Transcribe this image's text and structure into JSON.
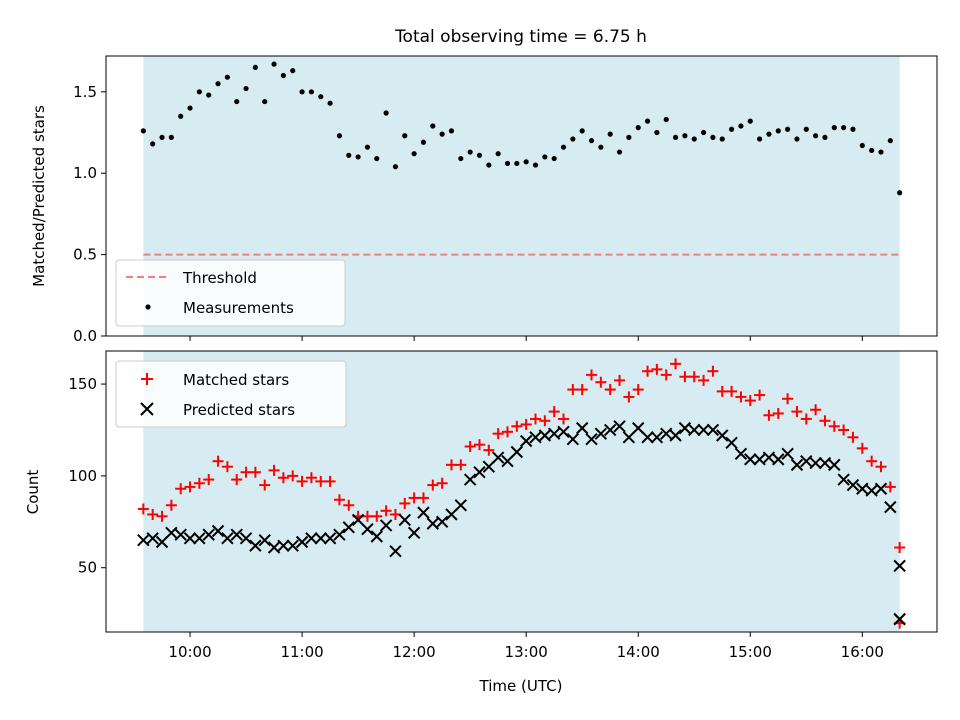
{
  "chart_data": [
    {
      "type": "scatter",
      "title": "Total observing time = 6.75 h",
      "ylabel": "Matched/Predicted stars",
      "xlabel": "",
      "x_ticks": [
        "10:00",
        "11:00",
        "12:00",
        "13:00",
        "14:00",
        "15:00",
        "16:00"
      ],
      "y_ticks": [
        "0.0",
        "0.5",
        "1.0",
        "1.5"
      ],
      "xlim": [
        "09:15",
        "16:40"
      ],
      "ylim": [
        0,
        1.72
      ],
      "observing_window": [
        "09:35",
        "16:20"
      ],
      "grid": false,
      "legend_position": "lower-left",
      "threshold": {
        "name": "Threshold",
        "value": 0.5,
        "color": "#f08080"
      },
      "series": [
        {
          "name": "Measurements",
          "color": "#000000",
          "x": [
            "09:35",
            "09:40",
            "09:45",
            "09:50",
            "09:55",
            "10:00",
            "10:05",
            "10:10",
            "10:15",
            "10:20",
            "10:25",
            "10:30",
            "10:35",
            "10:40",
            "10:45",
            "10:50",
            "10:55",
            "11:00",
            "11:05",
            "11:10",
            "11:15",
            "11:20",
            "11:25",
            "11:30",
            "11:35",
            "11:40",
            "11:45",
            "11:50",
            "11:55",
            "12:00",
            "12:05",
            "12:10",
            "12:15",
            "12:20",
            "12:25",
            "12:30",
            "12:35",
            "12:40",
            "12:45",
            "12:50",
            "12:55",
            "13:00",
            "13:05",
            "13:10",
            "13:15",
            "13:20",
            "13:25",
            "13:30",
            "13:35",
            "13:40",
            "13:45",
            "13:50",
            "13:55",
            "14:00",
            "14:05",
            "14:10",
            "14:15",
            "14:20",
            "14:25",
            "14:30",
            "14:35",
            "14:40",
            "14:45",
            "14:50",
            "14:55",
            "15:00",
            "15:05",
            "15:10",
            "15:15",
            "15:20",
            "15:25",
            "15:30",
            "15:35",
            "15:40",
            "15:45",
            "15:50",
            "15:55",
            "16:00",
            "16:05",
            "16:10",
            "16:15",
            "16:20"
          ],
          "y": [
            1.26,
            1.18,
            1.22,
            1.22,
            1.35,
            1.4,
            1.5,
            1.48,
            1.55,
            1.59,
            1.44,
            1.52,
            1.65,
            1.44,
            1.67,
            1.6,
            1.63,
            1.5,
            1.5,
            1.47,
            1.43,
            1.23,
            1.11,
            1.1,
            1.16,
            1.09,
            1.37,
            1.04,
            1.23,
            1.12,
            1.19,
            1.29,
            1.24,
            1.26,
            1.09,
            1.13,
            1.11,
            1.05,
            1.12,
            1.06,
            1.06,
            1.07,
            1.05,
            1.1,
            1.09,
            1.16,
            1.21,
            1.26,
            1.2,
            1.16,
            1.24,
            1.13,
            1.22,
            1.28,
            1.32,
            1.25,
            1.33,
            1.22,
            1.23,
            1.21,
            1.25,
            1.22,
            1.21,
            1.27,
            1.29,
            1.32,
            1.21,
            1.24,
            1.26,
            1.27,
            1.21,
            1.27,
            1.23,
            1.22,
            1.28,
            1.28,
            1.27,
            1.17,
            1.14,
            1.13,
            1.2,
            0.88
          ]
        }
      ]
    },
    {
      "type": "scatter",
      "title": "",
      "ylabel": "Count",
      "xlabel": "Time (UTC)",
      "x_ticks": [
        "10:00",
        "11:00",
        "12:00",
        "13:00",
        "14:00",
        "15:00",
        "16:00"
      ],
      "y_ticks": [
        "50",
        "100",
        "150"
      ],
      "xlim": [
        "09:15",
        "16:40"
      ],
      "ylim": [
        15,
        168
      ],
      "observing_window": [
        "09:35",
        "16:20"
      ],
      "grid": false,
      "legend_position": "upper-left",
      "series": [
        {
          "name": "Matched stars",
          "marker": "+",
          "color": "#ff0000",
          "x": [
            "09:35",
            "09:40",
            "09:45",
            "09:50",
            "09:55",
            "10:00",
            "10:05",
            "10:10",
            "10:15",
            "10:20",
            "10:25",
            "10:30",
            "10:35",
            "10:40",
            "10:45",
            "10:50",
            "10:55",
            "11:00",
            "11:05",
            "11:10",
            "11:15",
            "11:20",
            "11:25",
            "11:30",
            "11:35",
            "11:40",
            "11:45",
            "11:50",
            "11:55",
            "12:00",
            "12:05",
            "12:10",
            "12:15",
            "12:20",
            "12:25",
            "12:30",
            "12:35",
            "12:40",
            "12:45",
            "12:50",
            "12:55",
            "13:00",
            "13:05",
            "13:10",
            "13:15",
            "13:20",
            "13:25",
            "13:30",
            "13:35",
            "13:40",
            "13:45",
            "13:50",
            "13:55",
            "14:00",
            "14:05",
            "14:10",
            "14:15",
            "14:20",
            "14:25",
            "14:30",
            "14:35",
            "14:40",
            "14:45",
            "14:50",
            "14:55",
            "15:00",
            "15:05",
            "15:10",
            "15:15",
            "15:20",
            "15:25",
            "15:30",
            "15:35",
            "15:40",
            "15:45",
            "15:50",
            "15:55",
            "16:00",
            "16:05",
            "16:10",
            "16:15",
            "16:20"
          ],
          "y": [
            82,
            79,
            78,
            84,
            93,
            94,
            96,
            98,
            108,
            105,
            98,
            102,
            102,
            95,
            103,
            99,
            100,
            97,
            99,
            97,
            97,
            87,
            84,
            78,
            78,
            78,
            81,
            79,
            85,
            88,
            88,
            95,
            96,
            106,
            106,
            116,
            117,
            114,
            123,
            124,
            127,
            128,
            131,
            130,
            135,
            131,
            147,
            147,
            155,
            151,
            147,
            152,
            143,
            147,
            157,
            158,
            155,
            161,
            154,
            154,
            152,
            157,
            146,
            146,
            143,
            141,
            144,
            133,
            134,
            142,
            135,
            131,
            136,
            130,
            127,
            125,
            121,
            115,
            108,
            105,
            94,
            61
          ]
        },
        {
          "name": "Predicted stars",
          "marker": "x",
          "color": "#000000",
          "x": [
            "09:35",
            "09:40",
            "09:45",
            "09:50",
            "09:55",
            "10:00",
            "10:05",
            "10:10",
            "10:15",
            "10:20",
            "10:25",
            "10:30",
            "10:35",
            "10:40",
            "10:45",
            "10:50",
            "10:55",
            "11:00",
            "11:05",
            "11:10",
            "11:15",
            "11:20",
            "11:25",
            "11:30",
            "11:35",
            "11:40",
            "11:45",
            "11:50",
            "11:55",
            "12:00",
            "12:05",
            "12:10",
            "12:15",
            "12:20",
            "12:25",
            "12:30",
            "12:35",
            "12:40",
            "12:45",
            "12:50",
            "12:55",
            "13:00",
            "13:05",
            "13:10",
            "13:15",
            "13:20",
            "13:25",
            "13:30",
            "13:35",
            "13:40",
            "13:45",
            "13:50",
            "13:55",
            "14:00",
            "14:05",
            "14:10",
            "14:15",
            "14:20",
            "14:25",
            "14:30",
            "14:35",
            "14:40",
            "14:45",
            "14:50",
            "14:55",
            "15:00",
            "15:05",
            "15:10",
            "15:15",
            "15:20",
            "15:25",
            "15:30",
            "15:35",
            "15:40",
            "15:45",
            "15:50",
            "15:55",
            "16:00",
            "16:05",
            "16:10",
            "16:15",
            "16:20"
          ],
          "y": [
            65,
            66,
            64,
            69,
            68,
            66,
            66,
            68,
            70,
            66,
            68,
            66,
            62,
            65,
            61,
            62,
            62,
            64,
            66,
            66,
            66,
            68,
            72,
            76,
            71,
            67,
            73,
            59,
            76,
            69,
            80,
            74,
            75,
            79,
            84,
            98,
            102,
            105,
            110,
            108,
            113,
            119,
            121,
            122,
            123,
            124,
            120,
            126,
            120,
            123,
            125,
            127,
            121,
            126,
            121,
            121,
            123,
            122,
            126,
            125,
            125,
            125,
            122,
            118,
            112,
            109,
            109,
            110,
            109,
            112,
            106,
            108,
            107,
            107,
            106,
            98,
            95,
            93,
            92,
            93,
            83,
            51
          ]
        },
        {
          "name": "",
          "overlap_note": "",
          "color": "#000000",
          "x": [
            "16:20"
          ],
          "y": [
            22
          ]
        }
      ]
    }
  ]
}
